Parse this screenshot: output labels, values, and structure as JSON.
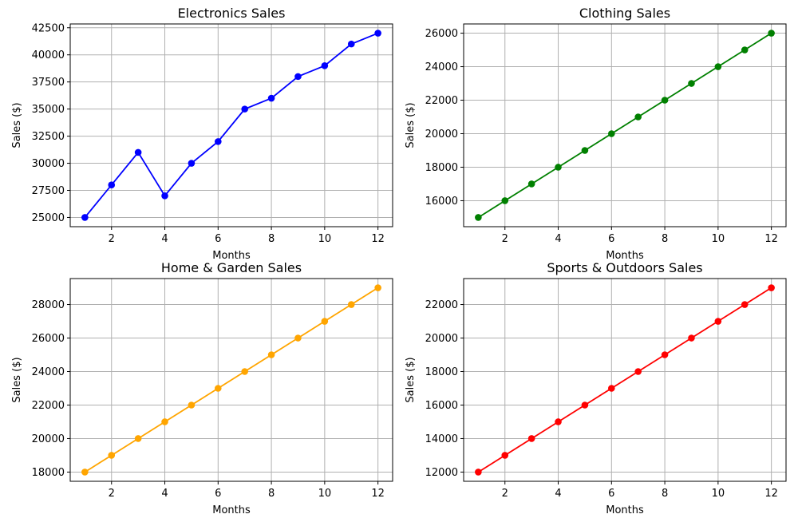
{
  "chart_data": [
    {
      "type": "line",
      "title": "Electronics Sales",
      "xlabel": "Months",
      "ylabel": "Sales ($)",
      "color": "#0000ff",
      "grid": true,
      "x": [
        1,
        2,
        3,
        4,
        5,
        6,
        7,
        8,
        9,
        10,
        11,
        12
      ],
      "values": [
        25000,
        28000,
        31000,
        27000,
        30000,
        32000,
        35000,
        36000,
        38000,
        39000,
        41000,
        42000
      ],
      "xlim": [
        0.45,
        12.55
      ],
      "ylim": [
        24150,
        42850
      ],
      "xticks": [
        2,
        4,
        6,
        8,
        10,
        12
      ],
      "yticks": [
        25000,
        27500,
        30000,
        32500,
        35000,
        37500,
        40000,
        42500
      ]
    },
    {
      "type": "line",
      "title": "Clothing Sales",
      "xlabel": "Months",
      "ylabel": "Sales ($)",
      "color": "#008000",
      "grid": true,
      "x": [
        1,
        2,
        3,
        4,
        5,
        6,
        7,
        8,
        9,
        10,
        11,
        12
      ],
      "values": [
        15000,
        16000,
        17000,
        18000,
        19000,
        20000,
        21000,
        22000,
        23000,
        24000,
        25000,
        26000
      ],
      "xlim": [
        0.45,
        12.55
      ],
      "ylim": [
        14450,
        26550
      ],
      "xticks": [
        2,
        4,
        6,
        8,
        10,
        12
      ],
      "yticks": [
        16000,
        18000,
        20000,
        22000,
        24000,
        26000
      ]
    },
    {
      "type": "line",
      "title": "Home & Garden Sales",
      "xlabel": "Months",
      "ylabel": "Sales ($)",
      "color": "#ffa500",
      "grid": true,
      "x": [
        1,
        2,
        3,
        4,
        5,
        6,
        7,
        8,
        9,
        10,
        11,
        12
      ],
      "values": [
        18000,
        19000,
        20000,
        21000,
        22000,
        23000,
        24000,
        25000,
        26000,
        27000,
        28000,
        29000
      ],
      "xlim": [
        0.45,
        12.55
      ],
      "ylim": [
        17450,
        29550
      ],
      "xticks": [
        2,
        4,
        6,
        8,
        10,
        12
      ],
      "yticks": [
        18000,
        20000,
        22000,
        24000,
        26000,
        28000
      ]
    },
    {
      "type": "line",
      "title": "Sports & Outdoors Sales",
      "xlabel": "Months",
      "ylabel": "Sales ($)",
      "color": "#ff0000",
      "grid": true,
      "x": [
        1,
        2,
        3,
        4,
        5,
        6,
        7,
        8,
        9,
        10,
        11,
        12
      ],
      "values": [
        12000,
        13000,
        14000,
        15000,
        16000,
        17000,
        18000,
        19000,
        20000,
        21000,
        22000,
        23000
      ],
      "xlim": [
        0.45,
        12.55
      ],
      "ylim": [
        11450,
        23550
      ],
      "xticks": [
        2,
        4,
        6,
        8,
        10,
        12
      ],
      "yticks": [
        12000,
        14000,
        16000,
        18000,
        20000,
        22000
      ]
    }
  ]
}
